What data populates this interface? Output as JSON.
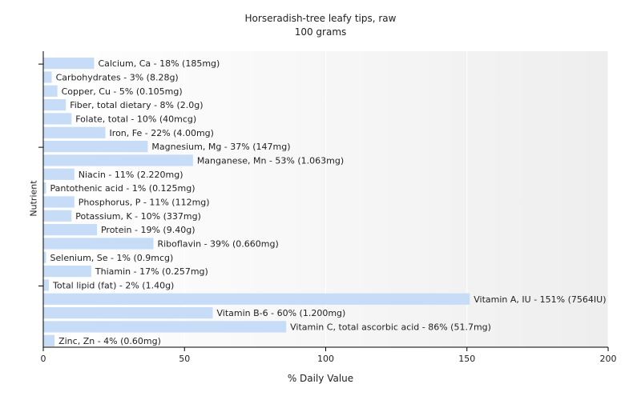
{
  "chart_data": {
    "type": "bar",
    "orientation": "horizontal",
    "title": "Horseradish-tree leafy tips, raw",
    "subtitle": "100 grams",
    "xlabel": "% Daily Value",
    "ylabel": "Nutrient",
    "xlim": [
      0,
      200
    ],
    "xticks": [
      "0",
      "50",
      "100",
      "150",
      "200"
    ],
    "grid": "vertical",
    "bar_color": "#c6dcf7",
    "categories": [
      "Calcium, Ca",
      "Carbohydrates",
      "Copper, Cu",
      "Fiber, total dietary",
      "Folate, total",
      "Iron, Fe",
      "Magnesium, Mg",
      "Manganese, Mn",
      "Niacin",
      "Pantothenic acid",
      "Phosphorus, P",
      "Potassium, K",
      "Protein",
      "Riboflavin",
      "Selenium, Se",
      "Thiamin",
      "Total lipid (fat)",
      "Vitamin A, IU",
      "Vitamin B-6",
      "Vitamin C, total ascorbic acid",
      "Zinc, Zn"
    ],
    "values": [
      18,
      3,
      5,
      8,
      10,
      22,
      37,
      53,
      11,
      1,
      11,
      10,
      19,
      39,
      1,
      17,
      2,
      151,
      60,
      86,
      4
    ],
    "labels": [
      "Calcium, Ca - 18% (185mg)",
      "Carbohydrates - 3% (8.28g)",
      "Copper, Cu - 5% (0.105mg)",
      "Fiber, total dietary - 8% (2.0g)",
      "Folate, total - 10% (40mcg)",
      "Iron, Fe - 22% (4.00mg)",
      "Magnesium, Mg - 37% (147mg)",
      "Manganese, Mn - 53% (1.063mg)",
      "Niacin - 11% (2.220mg)",
      "Pantothenic acid - 1% (0.125mg)",
      "Phosphorus, P - 11% (112mg)",
      "Potassium, K - 10% (337mg)",
      "Protein - 19% (9.40g)",
      "Riboflavin - 39% (0.660mg)",
      "Selenium, Se - 1% (0.9mcg)",
      "Thiamin - 17% (0.257mg)",
      "Total lipid (fat) - 2% (1.40g)",
      "Vitamin A, IU - 151% (7564IU)",
      "Vitamin B-6 - 60% (1.200mg)",
      "Vitamin C, total ascorbic acid - 86% (51.7mg)",
      "Zinc, Zn - 4% (0.60mg)"
    ]
  }
}
